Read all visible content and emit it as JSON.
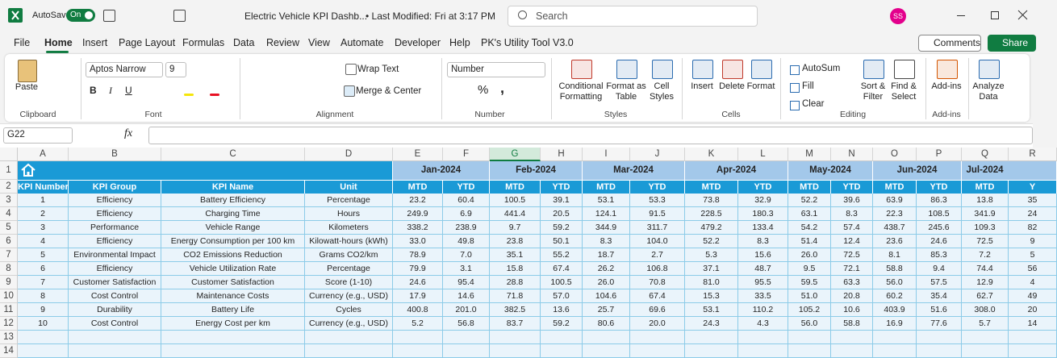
{
  "titlebar": {
    "autosave": "AutoSave",
    "toggle": "On",
    "filename": "Electric Vehicle KPI Dashb...",
    "modified": "• Last Modified: Fri at 3:17 PM",
    "search": "Search",
    "avatar": "SS"
  },
  "tabs": [
    "File",
    "Home",
    "Insert",
    "Page Layout",
    "Formulas",
    "Data",
    "Review",
    "View",
    "Automate",
    "Developer",
    "Help",
    "PK's Utility Tool V3.0"
  ],
  "actions": {
    "comments": "Comments",
    "share": "Share"
  },
  "ribbon": {
    "paste": "Paste",
    "font_name": "Aptos Narrow",
    "font_size": "9",
    "font_buttons": [
      "B",
      "I",
      "U"
    ],
    "wrap": "Wrap Text",
    "merge": "Merge & Center",
    "number_format": "Number",
    "number_buttons": [
      "%",
      ","
    ],
    "conditional": [
      "Conditional",
      "Formatting"
    ],
    "format_table": [
      "Format as",
      "Table"
    ],
    "cell_styles": [
      "Cell",
      "Styles"
    ],
    "insert": "Insert",
    "delete": "Delete",
    "format": "Format",
    "autosum": "AutoSum",
    "fill": "Fill",
    "clear": "Clear",
    "sort": [
      "Sort &",
      "Filter"
    ],
    "find": [
      "Find &",
      "Select"
    ],
    "addins": "Add-ins",
    "analyze": [
      "Analyze",
      "Data"
    ],
    "groups": [
      "Clipboard",
      "Font",
      "Alignment",
      "Number",
      "Styles",
      "Cells",
      "Editing",
      "Add-ins"
    ]
  },
  "formula_bar": {
    "name_box": "G22",
    "fx": "fx"
  },
  "sheet": {
    "columns": [
      "A",
      "B",
      "C",
      "D",
      "E",
      "F",
      "G",
      "H",
      "I",
      "J",
      "K",
      "L",
      "M",
      "N",
      "O",
      "P",
      "Q",
      "R"
    ],
    "row_numbers": [
      1,
      2,
      3,
      4,
      5,
      6,
      7,
      8,
      9,
      10,
      11,
      12,
      13,
      14
    ],
    "months": [
      "Jan-2024",
      "Feb-2024",
      "Mar-2024",
      "Apr-2024",
      "May-2024",
      "Jun-2024",
      "Jul-2024"
    ],
    "header": [
      "KPI Number",
      "KPI Group",
      "KPI Name",
      "Unit",
      "MTD",
      "YTD",
      "MTD",
      "YTD",
      "MTD",
      "YTD",
      "MTD",
      "YTD",
      "MTD",
      "YTD",
      "MTD",
      "YTD",
      "MTD",
      "Y"
    ],
    "rows": [
      [
        "1",
        "Efficiency",
        "Battery Efficiency",
        "Percentage",
        "23.2",
        "60.4",
        "100.5",
        "39.1",
        "53.1",
        "53.3",
        "73.8",
        "32.9",
        "52.2",
        "39.6",
        "63.9",
        "86.3",
        "13.8",
        "35"
      ],
      [
        "2",
        "Efficiency",
        "Charging Time",
        "Hours",
        "249.9",
        "6.9",
        "441.4",
        "20.5",
        "124.1",
        "91.5",
        "228.5",
        "180.3",
        "63.1",
        "8.3",
        "22.3",
        "108.5",
        "341.9",
        "24"
      ],
      [
        "3",
        "Performance",
        "Vehicle Range",
        "Kilometers",
        "338.2",
        "238.9",
        "9.7",
        "59.2",
        "344.9",
        "311.7",
        "479.2",
        "133.4",
        "54.2",
        "57.4",
        "438.7",
        "245.6",
        "109.3",
        "82"
      ],
      [
        "4",
        "Efficiency",
        "Energy Consumption per 100 km",
        "Kilowatt-hours (kWh)",
        "33.0",
        "49.8",
        "23.8",
        "50.1",
        "8.3",
        "104.0",
        "52.2",
        "8.3",
        "51.4",
        "12.4",
        "23.6",
        "24.6",
        "72.5",
        "9"
      ],
      [
        "5",
        "Environmental Impact",
        "CO2 Emissions Reduction",
        "Grams CO2/km",
        "78.9",
        "7.0",
        "35.1",
        "55.2",
        "18.7",
        "2.7",
        "5.3",
        "15.6",
        "26.0",
        "72.5",
        "8.1",
        "85.3",
        "7.2",
        "5"
      ],
      [
        "6",
        "Efficiency",
        "Vehicle Utilization Rate",
        "Percentage",
        "79.9",
        "3.1",
        "15.8",
        "67.4",
        "26.2",
        "106.8",
        "37.1",
        "48.7",
        "9.5",
        "72.1",
        "58.8",
        "9.4",
        "74.4",
        "56"
      ],
      [
        "7",
        "Customer Satisfaction",
        "Customer Satisfaction",
        "Score (1-10)",
        "24.6",
        "95.4",
        "28.8",
        "100.5",
        "26.0",
        "70.8",
        "81.0",
        "95.5",
        "59.5",
        "63.3",
        "56.0",
        "57.5",
        "12.9",
        "4"
      ],
      [
        "8",
        "Cost Control",
        "Maintenance Costs",
        "Currency (e.g., USD)",
        "17.9",
        "14.6",
        "71.8",
        "57.0",
        "104.6",
        "67.4",
        "15.3",
        "33.5",
        "51.0",
        "20.8",
        "60.2",
        "35.4",
        "62.7",
        "49"
      ],
      [
        "9",
        "Durability",
        "Battery Life",
        "Cycles",
        "400.8",
        "201.0",
        "382.5",
        "13.6",
        "25.7",
        "69.6",
        "53.1",
        "110.2",
        "105.2",
        "10.6",
        "403.9",
        "51.6",
        "308.0",
        "20"
      ],
      [
        "10",
        "Cost Control",
        "Energy Cost per km",
        "Currency (e.g., USD)",
        "5.2",
        "56.8",
        "83.7",
        "59.2",
        "80.6",
        "20.0",
        "24.3",
        "4.3",
        "56.0",
        "58.8",
        "16.9",
        "77.6",
        "5.7",
        "14"
      ]
    ]
  }
}
